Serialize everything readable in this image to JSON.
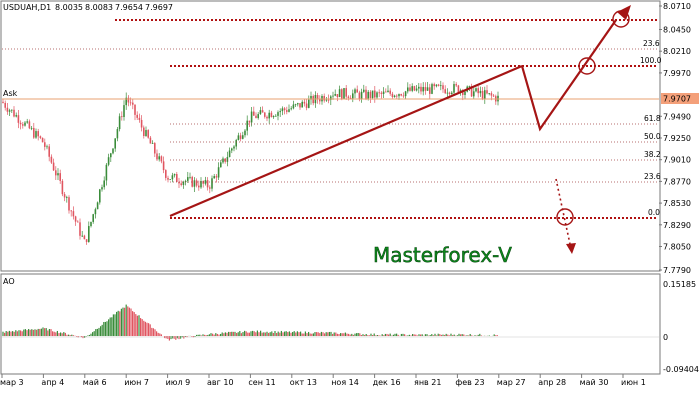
{
  "chart": {
    "symbol_info": "USDUAH,D1",
    "ohlc": {
      "open": "8.0035",
      "high": "8.0083",
      "low": "7.9654",
      "close": "7.9697"
    },
    "ask_label": "Ask",
    "ask_price": "7.9707",
    "watermark": "Masterforex-V",
    "colors": {
      "up": "#3a8c3a",
      "down": "#e05560",
      "fib": "#b01010",
      "arrow": "#a51515"
    }
  },
  "indicator": {
    "name": "AO",
    "top_value": "0.15185",
    "zero_value": "0",
    "bottom_value": "-0.09404"
  },
  "fib_levels": [
    "23.6",
    "100.0",
    "61.8",
    "50.0",
    "38.2",
    "23.6",
    "0.0"
  ],
  "chart_data": {
    "type": "line",
    "x_ticks": [
      "мар 3",
      "апр 4",
      "май 6",
      "июн 7",
      "июл 9",
      "авг 10",
      "сен 11",
      "окт 13",
      "ноя 14",
      "дек 16",
      "янв 21",
      "фев 23",
      "мар 27",
      "апр 28",
      "май 30",
      "июн 1"
    ],
    "y_ticks": [
      "8.0710",
      "8.0450",
      "8.0210",
      "7.9970",
      "7.9707",
      "7.9490",
      "7.9250",
      "7.9010",
      "7.8770",
      "7.8530",
      "7.8290",
      "7.8050",
      "7.7790"
    ],
    "ylim": [
      7.779,
      8.071
    ],
    "series": [
      {
        "x": [
          "мар 3",
          "апр 4",
          "май 6",
          "июн 7",
          "июл 9",
          "авг 10",
          "сен 11",
          "окт 13",
          "ноя 14",
          "дек 16",
          "янв 21",
          "фев 23",
          "мар 27"
        ],
        "values": [
          7.965,
          7.92,
          7.808,
          7.97,
          7.882,
          7.872,
          7.948,
          7.958,
          7.975,
          7.972,
          7.978,
          7.98,
          7.969
        ]
      }
    ],
    "ao": {
      "ylim": [
        -0.09404,
        0.15185
      ],
      "x": [
        "мар 3",
        "апр 4",
        "май 6",
        "июн 7",
        "июл 9",
        "авг 10",
        "сен 11",
        "окт 13",
        "ноя 14",
        "дек 16",
        "янв 21",
        "фев 23",
        "мар 27"
      ],
      "values": [
        0.01,
        0.02,
        -0.005,
        0.08,
        -0.01,
        0.005,
        0.012,
        0.01,
        0.008,
        0.004,
        0.003,
        0.004,
        0.002
      ]
    }
  }
}
